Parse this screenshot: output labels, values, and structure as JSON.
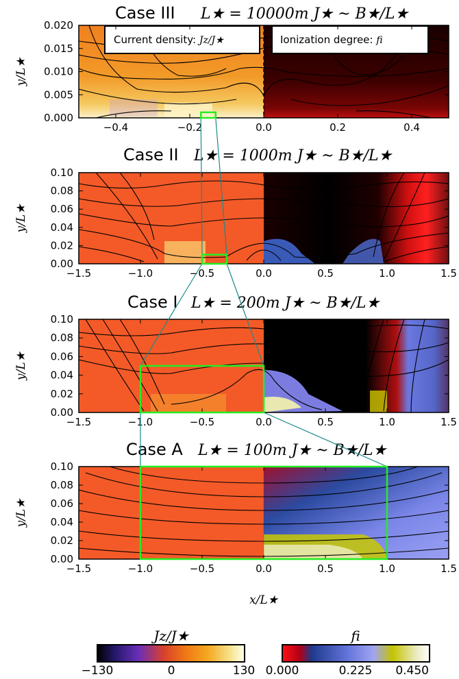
{
  "chart_data": [
    {
      "type": "heatmap",
      "id": "III",
      "title_case": "Case III",
      "title_math": "L★ = 10000m  J★ ~ B★/L★",
      "xlim": [
        -0.5,
        0.5
      ],
      "ylim": [
        0,
        0.02
      ],
      "xticks": [
        "−0.4",
        "−0.2",
        "0.0",
        "0.2",
        "0.4"
      ],
      "xtick_values": [
        -0.4,
        -0.2,
        0.0,
        0.2,
        0.4
      ],
      "yticks": [
        "0.000",
        "0.005",
        "0.010",
        "0.015",
        "0.020"
      ],
      "ytick_values": [
        0,
        0.005,
        0.01,
        0.015,
        0.02
      ],
      "ylabel": "y/L★",
      "left_field": "Jz/J★",
      "right_field": "fi",
      "zoom_box": {
        "x": [
          -0.17,
          -0.13
        ],
        "y": [
          0,
          0.0012
        ]
      }
    },
    {
      "type": "heatmap",
      "id": "II",
      "title_case": "Case II",
      "title_math": "L★ = 1000m  J★ ~ B★/L★",
      "xlim": [
        -1.5,
        1.5
      ],
      "ylim": [
        0,
        0.1
      ],
      "xticks": [
        "−1.5",
        "−1.0",
        "−0.5",
        "0.0",
        "0.5",
        "1.0",
        "1.5"
      ],
      "xtick_values": [
        -1.5,
        -1.0,
        -0.5,
        0.0,
        0.5,
        1.0,
        1.5
      ],
      "yticks": [
        "0.00",
        "0.02",
        "0.04",
        "0.06",
        "0.08",
        "0.10"
      ],
      "ytick_values": [
        0,
        0.02,
        0.04,
        0.06,
        0.08,
        0.1
      ],
      "ylabel": "y/L★",
      "zoom_box": {
        "x": [
          -0.5,
          -0.3
        ],
        "y": [
          0,
          0.01
        ]
      }
    },
    {
      "type": "heatmap",
      "id": "I",
      "title_case": "Case I",
      "title_math": "L★ = 200m  J★ ~ B★/L★",
      "xlim": [
        -1.5,
        1.5
      ],
      "ylim": [
        0,
        0.1
      ],
      "xticks": [
        "−1.5",
        "−1.0",
        "−0.5",
        "0.0",
        "0.5",
        "1.0",
        "1.5"
      ],
      "xtick_values": [
        -1.5,
        -1.0,
        -0.5,
        0.0,
        0.5,
        1.0,
        1.5
      ],
      "yticks": [
        "0.00",
        "0.02",
        "0.04",
        "0.06",
        "0.08",
        "0.10"
      ],
      "ytick_values": [
        0,
        0.02,
        0.04,
        0.06,
        0.08,
        0.1
      ],
      "ylabel": "y/L★",
      "zoom_box": {
        "x": [
          -1.0,
          0.0
        ],
        "y": [
          0,
          0.05
        ]
      }
    },
    {
      "type": "heatmap",
      "id": "A",
      "title_case": "Case A",
      "title_math": "L★ = 100m  J★ ~ B★/L★",
      "xlim": [
        -1.5,
        1.5
      ],
      "ylim": [
        0,
        0.1
      ],
      "xticks": [
        "−1.5",
        "−1.0",
        "−0.5",
        "0.0",
        "0.5",
        "1.0",
        "1.5"
      ],
      "xtick_values": [
        -1.5,
        -1.0,
        -0.5,
        0.0,
        0.5,
        1.0,
        1.5
      ],
      "yticks": [
        "0.00",
        "0.02",
        "0.04",
        "0.06",
        "0.08",
        "0.10"
      ],
      "ytick_values": [
        0,
        0.02,
        0.04,
        0.06,
        0.08,
        0.1
      ],
      "ylabel": "y/L★",
      "xlabel": "x/L★",
      "zoom_box": {
        "x": [
          -1.0,
          1.0
        ],
        "y": [
          0,
          0.1
        ]
      }
    }
  ],
  "legend": {
    "left": "Current density: ",
    "left_math": "Jz/J★",
    "right": "Ionization degree: ",
    "right_math": "fi"
  },
  "colorbars": [
    {
      "title": "Jz/J★",
      "ticks": [
        "−130",
        "0",
        "130"
      ],
      "tick_values": [
        -130,
        0,
        130
      ],
      "colors": [
        "#000000",
        "#3a1f8a",
        "#8c3bc0",
        "#e0402b",
        "#f07a10",
        "#f5b020",
        "#f7e27a",
        "#fffff0"
      ]
    },
    {
      "title": "fi",
      "ticks": [
        "0.000",
        "0.225",
        "0.450"
      ],
      "tick_values": [
        0,
        0.225,
        0.45
      ],
      "colors": [
        "#ff0000",
        "#c0001a",
        "#2b4aa0",
        "#6677dd",
        "#9a9ff0",
        "#c8c800",
        "#e8e8b0",
        "#ffffff"
      ]
    }
  ],
  "colors": {
    "zoom_box": "#22ee22",
    "connector": "#1a8a8a"
  }
}
